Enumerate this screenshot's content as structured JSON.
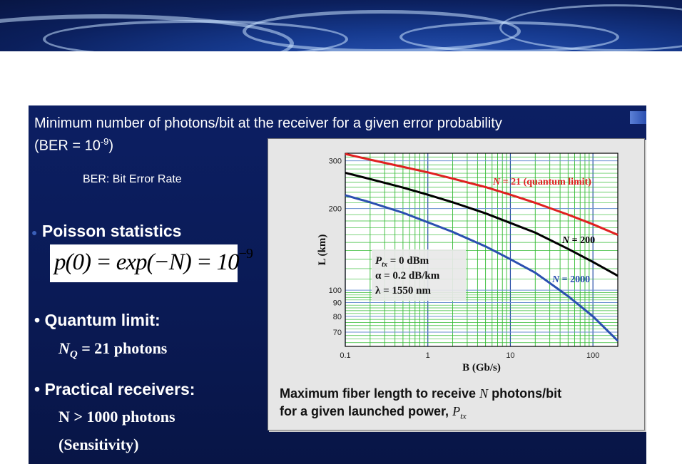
{
  "slide": {
    "heading": "Minimum number of photons/bit at the receiver for a given error probability",
    "heading_ber_prefix": "(BER = 10",
    "heading_ber_exp": "-9",
    "heading_ber_suffix": ")",
    "ber_definition": "BER: Bit Error Rate",
    "bullet_poisson": "Poisson statistics",
    "formula_lhs": "p(0) = exp(−N) = 10",
    "formula_exp": "−9",
    "bullet_quantum": "• Quantum limit:",
    "quantum_value_prefix": "N",
    "quantum_value_sub": "Q",
    "quantum_value_suffix": " = 21 photons",
    "bullet_practical": "• Practical receivers:",
    "practical_value": "N > 1000 photons",
    "practical_note": "(Sensitivity)"
  },
  "caption": {
    "line1_a": "Maximum fiber length to receive ",
    "line1_var": "N",
    "line1_b": " photons/bit",
    "line2_a": "for a given launched power, ",
    "line2_var": "P",
    "line2_sub": "tx"
  },
  "chart_data": {
    "type": "line",
    "xlabel": "B (Gb/s)",
    "ylabel": "L (km)",
    "xscale": "log",
    "yscale": "log",
    "xlim": [
      0.1,
      200
    ],
    "ylim": [
      62,
      320
    ],
    "x_ticks": [
      0.1,
      1,
      10,
      100
    ],
    "x_tick_labels": [
      "0.1",
      "1",
      "10",
      "100"
    ],
    "y_ticks": [
      70,
      80,
      90,
      100,
      200,
      300
    ],
    "y_tick_labels": [
      "70",
      "80",
      "90",
      "100",
      "200",
      "300"
    ],
    "grid": true,
    "grid_color_minor": "#33bb33",
    "grid_color_decade": "#2a4fa8",
    "annotation_lines": [
      "P_tx = 0 dBm",
      "α = 0.2 dB/km",
      "λ = 1550 nm"
    ],
    "annotation_text": {
      "ptx_var": "P",
      "ptx_sub": "tx",
      "ptx_rest": " = 0 dBm",
      "alpha": "α = 0.2 dB/km",
      "lambda": "λ = 1550 nm"
    },
    "series": [
      {
        "label_var": "N",
        "label_rest": " = 21 (quantum limit)",
        "color": "#e02020",
        "x": [
          0.1,
          0.2,
          0.5,
          1,
          2,
          5,
          10,
          20,
          50,
          100,
          200
        ],
        "y": [
          318,
          303,
          285,
          272,
          258,
          240,
          225,
          210,
          190,
          175,
          160
        ]
      },
      {
        "label_var": "N",
        "label_rest": " = 200",
        "color": "#000000",
        "x": [
          0.1,
          0.2,
          0.5,
          1,
          2,
          5,
          10,
          20,
          50,
          100,
          200
        ],
        "y": [
          271,
          257,
          239,
          225,
          211,
          192,
          177,
          163,
          142,
          127,
          113
        ]
      },
      {
        "label_var": "N",
        "label_rest": " = 2000",
        "color": "#2a4fb0",
        "x": [
          0.1,
          0.2,
          0.5,
          1,
          2,
          5,
          10,
          20,
          50,
          100,
          200
        ],
        "y": [
          224,
          211,
          193,
          178,
          164,
          145,
          130,
          116,
          95,
          80,
          65
        ]
      }
    ]
  }
}
